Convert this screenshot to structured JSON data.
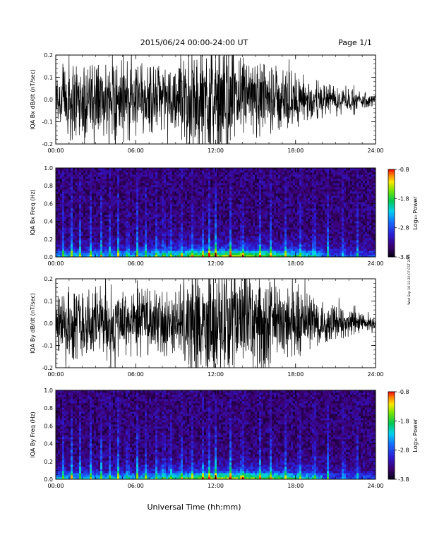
{
  "header": {
    "title": "2015/06/24  00:00-24:00 UT",
    "page": "Page 1/1"
  },
  "side_stamp": "Wed Sep 16 11:20:07 CST 2015",
  "chart_data": [
    {
      "type": "line",
      "ylabel": "IQA Bx dB/dt (nT/sec)",
      "ylim": [
        -0.2,
        0.2
      ],
      "yticks": [
        "0.2",
        "0.1",
        "0.0",
        "-0.1",
        "-0.2"
      ],
      "xticks": [
        "00:00",
        "06:00",
        "12:00",
        "18:00",
        "24:00"
      ],
      "xlim_hours": [
        0,
        24
      ],
      "envelope_hours": [
        0,
        1,
        2,
        3,
        4,
        5,
        6,
        7,
        8,
        9,
        10,
        11,
        12,
        13,
        14,
        15,
        16,
        17,
        18,
        19,
        20,
        21,
        22,
        23,
        24
      ],
      "envelope_amplitude": [
        0.12,
        0.2,
        0.17,
        0.2,
        0.18,
        0.2,
        0.19,
        0.16,
        0.14,
        0.13,
        0.25,
        0.25,
        0.25,
        0.25,
        0.2,
        0.18,
        0.16,
        0.15,
        0.13,
        0.1,
        0.08,
        0.06,
        0.05,
        0.04,
        0.03
      ]
    },
    {
      "type": "heatmap",
      "ylabel": "IQA Bx Freq (Hz)",
      "ylim": [
        0,
        1.0
      ],
      "yticks": [
        "1.0",
        "0.8",
        "0.6",
        "0.4",
        "0.2",
        "0.0"
      ],
      "xticks": [
        "00:00",
        "06:00",
        "12:00",
        "18:00",
        "24:00"
      ],
      "colorbar": {
        "label": "Log₁₀ Power",
        "ticks": [
          "-0.8",
          "-1.8",
          "-2.8",
          "-3.8"
        ],
        "range": [
          -3.8,
          -0.8
        ]
      },
      "spike_hours": [
        0.6,
        1.2,
        1.8,
        2.6,
        3.4,
        4.1,
        4.7,
        5.4,
        6.1,
        6.8,
        7.6,
        8.1,
        8.6,
        9.4,
        10.2,
        11.0,
        11.5,
        12.0,
        13.1,
        14.0,
        15.3,
        16.1,
        17.2,
        18.3,
        19.4,
        20.4,
        21.6,
        22.6
      ]
    },
    {
      "type": "line",
      "ylabel": "IQA By dB/dt (nT/sec)",
      "ylim": [
        -0.2,
        0.2
      ],
      "yticks": [
        "0.2",
        "0.1",
        "0.0",
        "-0.1",
        "-0.2"
      ],
      "xticks": [
        "00:00",
        "06:00",
        "12:00",
        "18:00",
        "24:00"
      ],
      "xlim_hours": [
        0,
        24
      ],
      "envelope_hours": [
        0,
        1,
        2,
        3,
        4,
        5,
        6,
        7,
        8,
        9,
        10,
        11,
        12,
        13,
        14,
        15,
        16,
        17,
        18,
        19,
        20,
        21,
        22,
        23,
        24
      ],
      "envelope_amplitude": [
        0.12,
        0.17,
        0.16,
        0.17,
        0.18,
        0.17,
        0.16,
        0.16,
        0.15,
        0.15,
        0.25,
        0.25,
        0.25,
        0.25,
        0.24,
        0.22,
        0.2,
        0.18,
        0.16,
        0.13,
        0.1,
        0.08,
        0.06,
        0.04,
        0.03
      ]
    },
    {
      "type": "heatmap",
      "ylabel": "IQA By Freq (Hz)",
      "ylim": [
        0,
        1.0
      ],
      "yticks": [
        "1.0",
        "0.8",
        "0.6",
        "0.4",
        "0.2",
        "0.0"
      ],
      "xticks": [
        "00:00",
        "06:00",
        "12:00",
        "18:00",
        "24:00"
      ],
      "colorbar": {
        "label": "Log₁₀ Power",
        "ticks": [
          "-0.8",
          "-1.8",
          "-2.8",
          "-3.8"
        ],
        "range": [
          -3.8,
          -0.8
        ]
      },
      "spike_hours": [
        0.6,
        1.2,
        1.8,
        2.6,
        3.4,
        4.1,
        4.7,
        5.4,
        6.1,
        6.8,
        7.6,
        8.1,
        8.6,
        9.4,
        10.2,
        11.0,
        11.5,
        12.0,
        13.1,
        14.0,
        15.3,
        16.1,
        17.2,
        18.3,
        19.4,
        20.4,
        21.6,
        22.6
      ]
    }
  ],
  "xlabel": "Universal Time (hh:mm)"
}
